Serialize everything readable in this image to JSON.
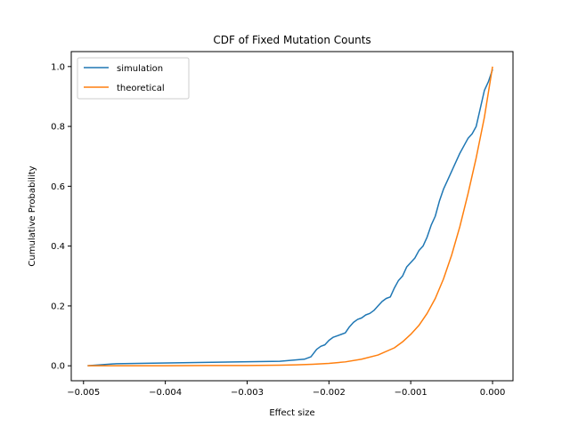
{
  "chart_data": {
    "type": "line",
    "title": "CDF of Fixed Mutation Counts",
    "xlabel": "Effect size",
    "ylabel": "Cumulative Probability",
    "xlim": [
      -0.00515,
      0.00025
    ],
    "ylim": [
      -0.05,
      1.05
    ],
    "xticks": [
      -0.005,
      -0.004,
      -0.003,
      -0.002,
      -0.001,
      0.0
    ],
    "xtick_labels": [
      "−0.005",
      "−0.004",
      "−0.003",
      "−0.002",
      "−0.001",
      "0.000"
    ],
    "yticks": [
      0.0,
      0.2,
      0.4,
      0.6,
      0.8,
      1.0
    ],
    "ytick_labels": [
      "0.0",
      "0.2",
      "0.4",
      "0.6",
      "0.8",
      "1.0"
    ],
    "grid": false,
    "legend_position": "top-left",
    "colors": {
      "simulation": "#1f77b4",
      "theoretical": "#ff7f0e"
    },
    "series": [
      {
        "name": "simulation",
        "x": [
          -0.00495,
          -0.0046,
          -0.0026,
          -0.0023,
          -0.00222,
          -0.00215,
          -0.0021,
          -0.00205,
          -0.002,
          -0.00195,
          -0.0019,
          -0.00185,
          -0.0018,
          -0.00175,
          -0.0017,
          -0.00165,
          -0.0016,
          -0.00155,
          -0.0015,
          -0.00145,
          -0.0014,
          -0.00135,
          -0.0013,
          -0.00125,
          -0.0012,
          -0.00115,
          -0.0011,
          -0.00105,
          -0.001,
          -0.00095,
          -0.0009,
          -0.00085,
          -0.0008,
          -0.00075,
          -0.0007,
          -0.00065,
          -0.0006,
          -0.00055,
          -0.0005,
          -0.00045,
          -0.0004,
          -0.00035,
          -0.0003,
          -0.00025,
          -0.0002,
          -0.00015,
          -0.0001,
          -5e-05,
          0.0
        ],
        "y": [
          0.0,
          0.007,
          0.015,
          0.022,
          0.03,
          0.055,
          0.065,
          0.07,
          0.085,
          0.095,
          0.1,
          0.105,
          0.11,
          0.13,
          0.145,
          0.155,
          0.16,
          0.17,
          0.175,
          0.185,
          0.2,
          0.215,
          0.225,
          0.23,
          0.26,
          0.285,
          0.3,
          0.33,
          0.345,
          0.36,
          0.385,
          0.4,
          0.43,
          0.47,
          0.5,
          0.55,
          0.59,
          0.62,
          0.65,
          0.68,
          0.71,
          0.735,
          0.76,
          0.775,
          0.8,
          0.86,
          0.92,
          0.95,
          0.99
        ]
      },
      {
        "name": "theoretical",
        "x": [
          -0.00495,
          -0.0045,
          -0.004,
          -0.0035,
          -0.003,
          -0.0026,
          -0.0024,
          -0.0022,
          -0.002,
          -0.0018,
          -0.0016,
          -0.0014,
          -0.0012,
          -0.0011,
          -0.001,
          -0.0009,
          -0.0008,
          -0.0007,
          -0.0006,
          -0.0005,
          -0.0004,
          -0.0003,
          -0.0002,
          -0.0001,
          0.0
        ],
        "y": [
          0.0,
          0.0,
          0.0,
          0.001,
          0.001,
          0.002,
          0.003,
          0.005,
          0.008,
          0.013,
          0.022,
          0.036,
          0.06,
          0.08,
          0.105,
          0.135,
          0.175,
          0.225,
          0.29,
          0.37,
          0.465,
          0.575,
          0.695,
          0.83,
          1.0
        ]
      }
    ]
  }
}
